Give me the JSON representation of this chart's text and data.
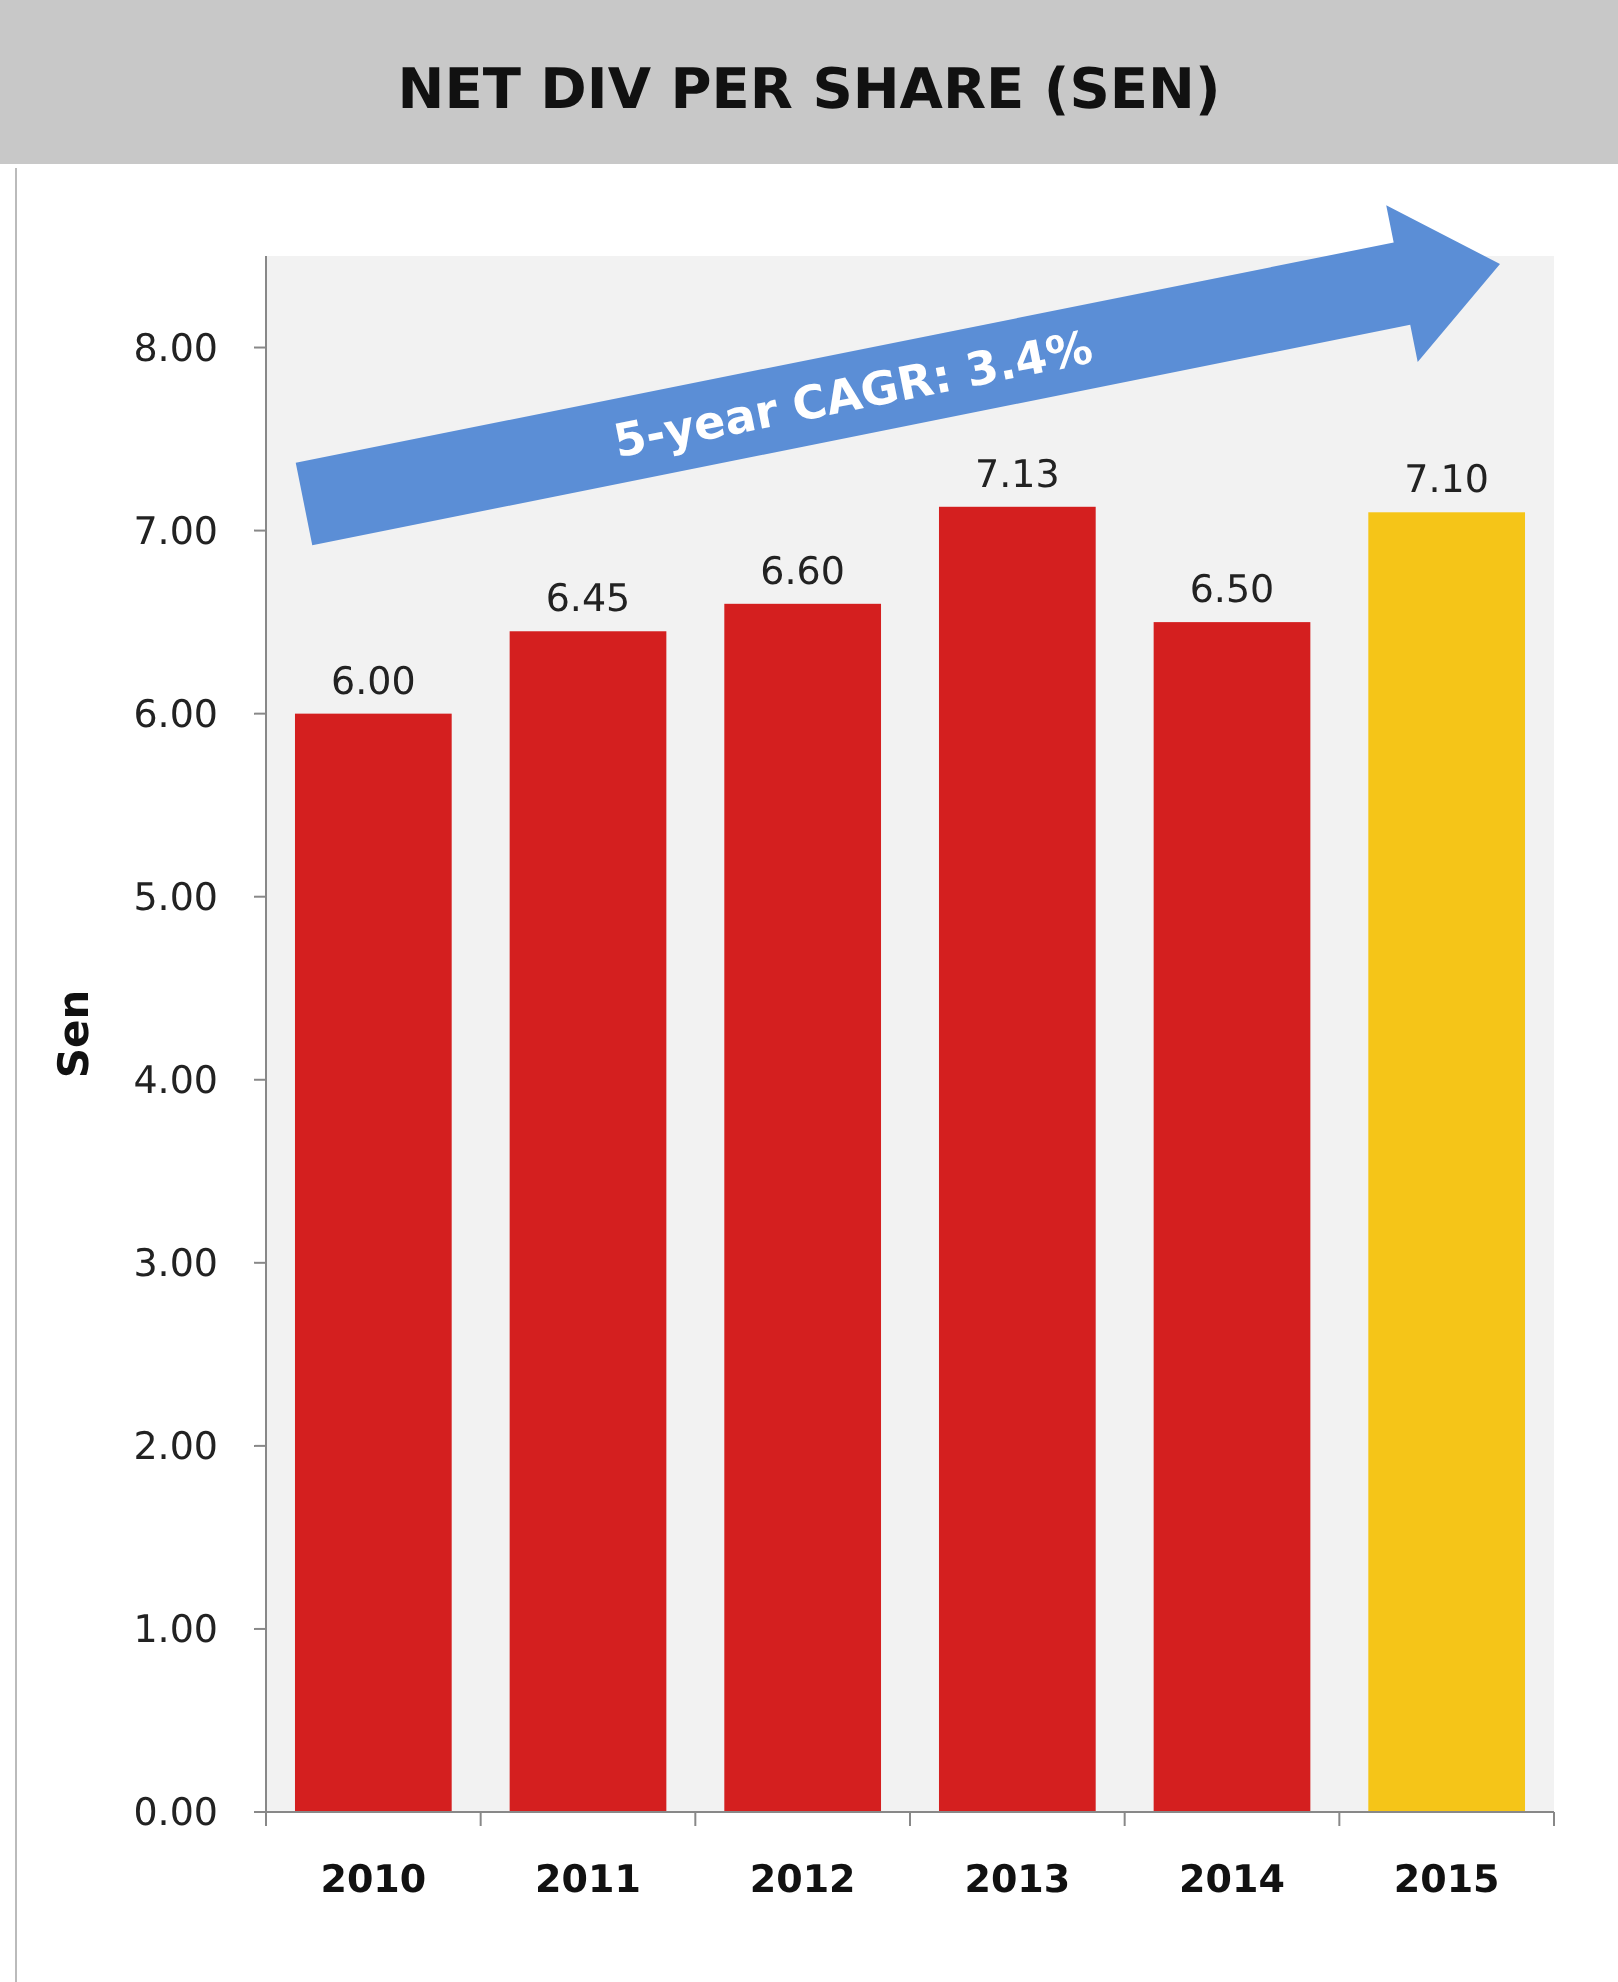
{
  "chart_data": {
    "type": "bar",
    "title": "NET DIV PER SHARE (SEN)",
    "ylabel": "Sen",
    "categories": [
      "2010",
      "2011",
      "2012",
      "2013",
      "2014",
      "2015"
    ],
    "values": [
      6.0,
      6.45,
      6.6,
      7.13,
      6.5,
      7.1
    ],
    "colors": [
      "#d41f1f",
      "#d41f1f",
      "#d41f1f",
      "#d41f1f",
      "#d41f1f",
      "#f5c518"
    ],
    "value_labels": [
      "6.00",
      "6.45",
      "6.60",
      "7.13",
      "6.50",
      "7.10"
    ],
    "ylim": [
      0,
      8.5
    ],
    "yticks": [
      {
        "value": 0,
        "label": "0.00"
      },
      {
        "value": 1,
        "label": "1.00"
      },
      {
        "value": 2,
        "label": "2.00"
      },
      {
        "value": 3,
        "label": "3.00"
      },
      {
        "value": 4,
        "label": "4.00"
      },
      {
        "value": 5,
        "label": "5.00"
      },
      {
        "value": 6,
        "label": "6.00"
      },
      {
        "value": 7,
        "label": "7.00"
      },
      {
        "value": 8,
        "label": "8.00"
      }
    ],
    "annotations": [
      "5-year CAGR: 3.4%"
    ]
  }
}
